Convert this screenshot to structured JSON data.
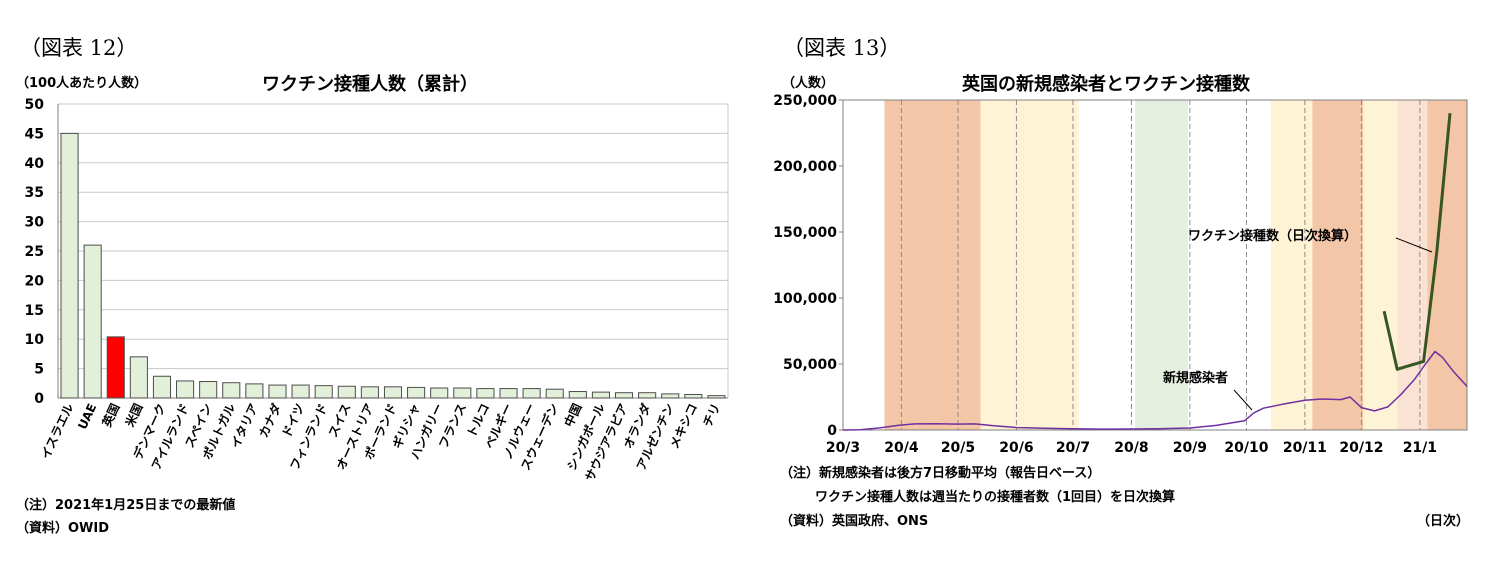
{
  "left_panel": {
    "fig_label": "（図表 12）",
    "unit_label": "（100人あたり人数）",
    "title": "ワクチン接種人数（累計）",
    "note": "（注）2021年1月25日までの最新値",
    "source": "（資料）OWID"
  },
  "right_panel": {
    "fig_label": "（図表 13）",
    "unit_label": "（人数）",
    "title": "英国の新規感染者とワクチン接種数",
    "annotation_vaccine": "ワクチン接種数（日次換算）",
    "annotation_cases": "新規感染者",
    "note1": "（注）新規感染者は後方7日移動平均（報告日ベース）",
    "note2": "ワクチン接種人数は週当たりの接種者数（1回目）を日次換算",
    "source": "（資料）英国政府、ONS",
    "x_unit": "（日次）"
  },
  "colors": {
    "bar_fill": "#e2f0d9",
    "bar_highlight": "#ff0000",
    "bar_stroke": "#4d4d4d",
    "band_orange": "#f4c6a8",
    "band_yellow": "#fff3d6",
    "band_green": "#e5efe0",
    "band_light": "#fbe3d4",
    "cases_line": "#7030a0",
    "vaccine_line": "#375623"
  },
  "chart_data": [
    {
      "type": "bar",
      "title": "ワクチン接種人数（累計）",
      "ylabel": "（100人あたり人数）",
      "ylim": [
        0,
        50
      ],
      "yticks": [
        "0",
        "5",
        "10",
        "15",
        "20",
        "25",
        "30",
        "35",
        "40",
        "45",
        "50"
      ],
      "grid": true,
      "categories": [
        "イスラエル",
        "UAE",
        "英国",
        "米国",
        "デンマーク",
        "アイルランド",
        "スペイン",
        "ポルトガル",
        "イタリア",
        "カナダ",
        "ドイツ",
        "フィンランド",
        "スイス",
        "オーストリア",
        "ポーランド",
        "ギリシャ",
        "ハンガリー",
        "フランス",
        "トルコ",
        "ベルギー",
        "ノルウェー",
        "スウェーデン",
        "中国",
        "シンガポール",
        "サウジアラビア",
        "オランダ",
        "アルゼンチン",
        "メキシコ",
        "チリ"
      ],
      "values": [
        45.0,
        26.0,
        10.4,
        7.0,
        3.7,
        2.9,
        2.8,
        2.6,
        2.4,
        2.2,
        2.2,
        2.1,
        2.0,
        1.9,
        1.9,
        1.8,
        1.7,
        1.7,
        1.6,
        1.6,
        1.6,
        1.5,
        1.1,
        1.0,
        0.9,
        0.9,
        0.7,
        0.6,
        0.4
      ],
      "highlight": "英国"
    },
    {
      "type": "line",
      "title": "英国の新規感染者とワクチン接種数",
      "ylabel": "（人数）",
      "xlabel": "（日次）",
      "ylim": [
        0,
        250000
      ],
      "yticks": [
        "0",
        "50,000",
        "100,000",
        "150,000",
        "200,000",
        "250,000"
      ],
      "xticks": [
        "20/3",
        "20/4",
        "20/5",
        "20/6",
        "20/7",
        "20/8",
        "20/9",
        "20/10",
        "20/11",
        "20/12",
        "21/1"
      ],
      "x_range": [
        "2020-03-01",
        "2021-01-26"
      ],
      "bands": [
        {
          "from": "2020-03-23",
          "to": "2020-05-13",
          "color": "orange"
        },
        {
          "from": "2020-05-13",
          "to": "2020-07-04",
          "color": "yellow"
        },
        {
          "from": "2020-08-03",
          "to": "2020-08-31",
          "color": "green"
        },
        {
          "from": "2020-10-14",
          "to": "2020-11-05",
          "color": "yellow"
        },
        {
          "from": "2020-11-05",
          "to": "2020-12-02",
          "color": "orange"
        },
        {
          "from": "2020-12-02",
          "to": "2020-12-20",
          "color": "yellow"
        },
        {
          "from": "2020-12-20",
          "to": "2021-01-05",
          "color": "light"
        },
        {
          "from": "2021-01-05",
          "to": "2021-01-26",
          "color": "orange"
        }
      ],
      "series": [
        {
          "name": "新規感染者",
          "color": "cases_line",
          "points": [
            [
              "2020-03-01",
              0
            ],
            [
              "2020-03-10",
              200
            ],
            [
              "2020-03-20",
              1500
            ],
            [
              "2020-03-30",
              3500
            ],
            [
              "2020-04-08",
              4600
            ],
            [
              "2020-04-20",
              4800
            ],
            [
              "2020-05-01",
              4500
            ],
            [
              "2020-05-10",
              4600
            ],
            [
              "2020-05-20",
              3200
            ],
            [
              "2020-06-01",
              1900
            ],
            [
              "2020-06-15",
              1300
            ],
            [
              "2020-07-01",
              900
            ],
            [
              "2020-07-15",
              700
            ],
            [
              "2020-08-01",
              750
            ],
            [
              "2020-08-15",
              900
            ],
            [
              "2020-09-01",
              1500
            ],
            [
              "2020-09-15",
              3500
            ],
            [
              "2020-09-30",
              7000
            ],
            [
              "2020-10-05",
              13000
            ],
            [
              "2020-10-10",
              16500
            ],
            [
              "2020-10-20",
              19500
            ],
            [
              "2020-11-01",
              22500
            ],
            [
              "2020-11-10",
              23500
            ],
            [
              "2020-11-20",
              23000
            ],
            [
              "2020-11-25",
              25000
            ],
            [
              "2020-12-01",
              17000
            ],
            [
              "2020-12-08",
              14500
            ],
            [
              "2020-12-15",
              17500
            ],
            [
              "2020-12-22",
              27000
            ],
            [
              "2020-12-29",
              38000
            ],
            [
              "2021-01-04",
              50000
            ],
            [
              "2021-01-09",
              59500
            ],
            [
              "2021-01-13",
              55000
            ],
            [
              "2021-01-19",
              44000
            ],
            [
              "2021-01-26",
              33000
            ]
          ]
        },
        {
          "name": "ワクチン接種数（日次換算）",
          "color": "vaccine_line",
          "points": [
            [
              "2020-12-13",
              90000
            ],
            [
              "2020-12-20",
              46000
            ],
            [
              "2020-12-27",
              49000
            ],
            [
              "2021-01-03",
              52000
            ],
            [
              "2021-01-10",
              135000
            ],
            [
              "2021-01-17",
              240000
            ]
          ]
        }
      ]
    }
  ]
}
